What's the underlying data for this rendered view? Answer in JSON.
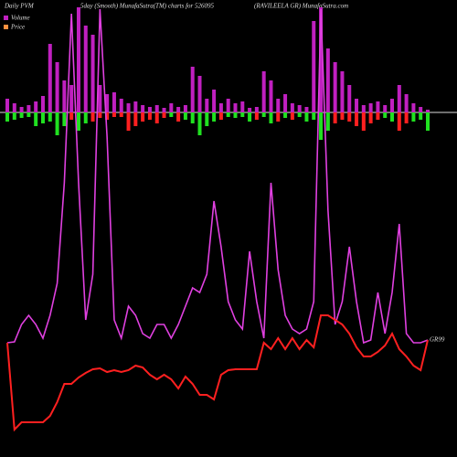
{
  "chart_data": {
    "type": "bar-line",
    "title": "Daily PVM",
    "subtitle": "5day (Smooth) MunafaSutra(TM) charts for 526095",
    "source": "(RAVILEELA GR) MunafaSutra.com",
    "end_label": "GR99",
    "ylim": [
      -60,
      120
    ],
    "y2lim": [
      0,
      500
    ],
    "series": [
      {
        "name": "Volume",
        "color": "#c020c0",
        "type": "bar",
        "values": [
          15,
          10,
          6,
          8,
          12,
          18,
          75,
          55,
          35,
          30,
          115,
          95,
          85,
          30,
          20,
          22,
          15,
          10,
          12,
          8,
          6,
          8,
          5,
          10,
          6,
          8,
          50,
          40,
          15,
          25,
          10,
          15,
          10,
          12,
          5,
          6,
          45,
          35,
          15,
          20,
          10,
          8,
          6,
          100,
          115,
          70,
          55,
          45,
          30,
          15,
          8,
          10,
          12,
          8,
          15,
          30,
          20,
          10,
          6,
          3
        ],
        "down_values": [
          -10,
          -8,
          -6,
          -5,
          -15,
          -12,
          -10,
          -25,
          -15,
          -8,
          -20,
          -12,
          -10,
          -6,
          -8,
          -5,
          -5,
          -20,
          -15,
          -10,
          -8,
          -12,
          -6,
          -5,
          -10,
          -8,
          -12,
          -25,
          -15,
          -10,
          -8,
          -5,
          -6,
          -5,
          -10,
          -8,
          -5,
          -12,
          -10,
          -6,
          -8,
          -5,
          -10,
          -8,
          -30,
          -20,
          -12,
          -8,
          -10,
          -15,
          -20,
          -12,
          -8,
          -6,
          -10,
          -20,
          -12,
          -10,
          -8,
          -20
        ],
        "down_colors": [
          "#20e020",
          "#20e020",
          "#20e020",
          "#20e020",
          "#20e020",
          "#20e020",
          "#20e020",
          "#20e020",
          "#20e020",
          "#ff2020",
          "#20e020",
          "#20e020",
          "#ff2020",
          "#ff2020",
          "#ff2020",
          "#ff2020",
          "#ff2020",
          "#ff2020",
          "#ff2020",
          "#ff2020",
          "#ff2020",
          "#ff2020",
          "#ff2020",
          "#20e020",
          "#ff2020",
          "#20e020",
          "#20e020",
          "#20e020",
          "#20e020",
          "#20e020",
          "#ff2020",
          "#20e020",
          "#20e020",
          "#20e020",
          "#20e020",
          "#ff2020",
          "#20e020",
          "#20e020",
          "#ff2020",
          "#20e020",
          "#ff2020",
          "#20e020",
          "#20e020",
          "#20e020",
          "#20e020",
          "#20e020",
          "#ff2020",
          "#ff2020",
          "#ff2020",
          "#ff2020",
          "#ff2020",
          "#ff2020",
          "#ff2020",
          "#20e020",
          "#20e020",
          "#ff2020",
          "#ff2020",
          "#20e020",
          "#20e020",
          "#20e020"
        ],
        "smooth_color": "#e040e0",
        "smooth": [
          125,
          126,
          145,
          155,
          145,
          130,
          155,
          190,
          300,
          485,
          300,
          150,
          200,
          490,
          350,
          150,
          130,
          165,
          155,
          135,
          130,
          145,
          145,
          130,
          145,
          165,
          185,
          180,
          200,
          280,
          230,
          170,
          150,
          140,
          225,
          170,
          130,
          300,
          205,
          155,
          140,
          135,
          140,
          170,
          490,
          270,
          145,
          170,
          230,
          170,
          125,
          128,
          180,
          135,
          180,
          255,
          135,
          125,
          125,
          128
        ]
      },
      {
        "name": "Price",
        "color": "#ff2020",
        "legend_color": "#ff9040",
        "type": "line",
        "axis": "y2",
        "values": [
          125,
          30,
          38,
          38,
          38,
          38,
          45,
          60,
          80,
          80,
          87,
          92,
          96,
          97,
          93,
          95,
          93,
          95,
          100,
          98,
          90,
          85,
          90,
          85,
          75,
          88,
          80,
          68,
          68,
          63,
          90,
          95,
          96,
          96,
          96,
          96,
          125,
          118,
          130,
          118,
          130,
          118,
          128,
          120,
          155,
          155,
          150,
          145,
          135,
          120,
          110,
          110,
          115,
          122,
          135,
          118,
          110,
          100,
          95,
          128
        ]
      }
    ]
  }
}
